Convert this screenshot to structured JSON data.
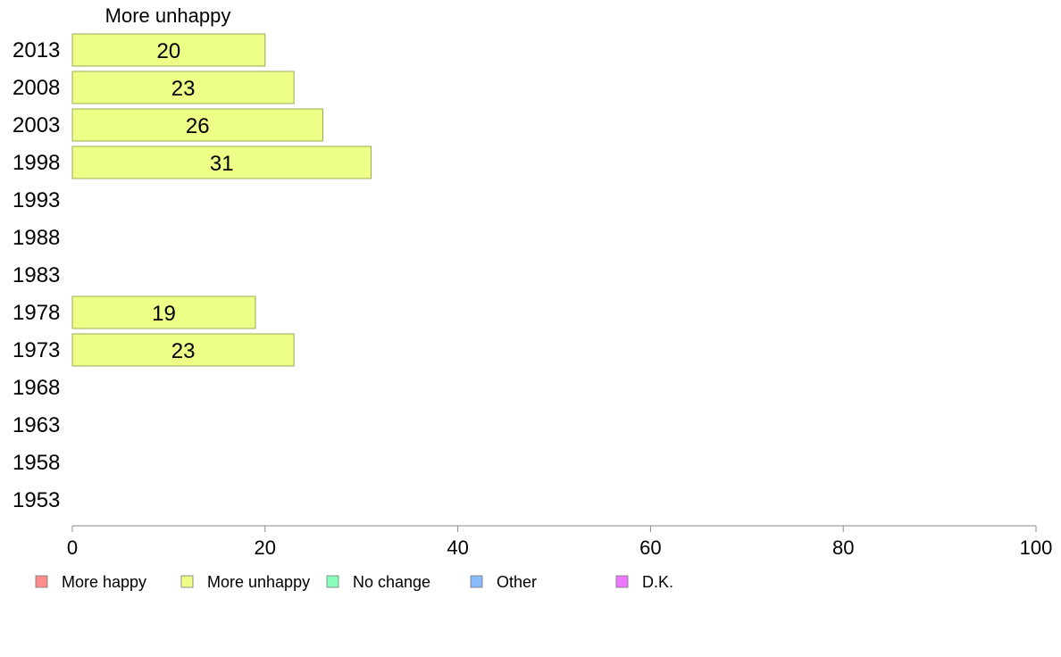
{
  "chart_data": {
    "type": "bar",
    "orientation": "horizontal",
    "title": "More unhappy",
    "categories": [
      "2013",
      "2008",
      "2003",
      "1998",
      "1993",
      "1988",
      "1983",
      "1978",
      "1973",
      "1968",
      "1963",
      "1958",
      "1953"
    ],
    "series": [
      {
        "name": "More unhappy",
        "color": "#eeff88",
        "values": [
          20,
          23,
          26,
          31,
          null,
          null,
          null,
          19,
          23,
          null,
          null,
          null,
          null
        ]
      }
    ],
    "xlim": [
      0,
      100
    ],
    "xticks": [
      0,
      20,
      40,
      60,
      80,
      100
    ],
    "grid": false,
    "legend_position": "bottom",
    "legend": [
      {
        "label": "More happy",
        "color": "#ff8c8c"
      },
      {
        "label": "More unhappy",
        "color": "#eeff88"
      },
      {
        "label": "No change",
        "color": "#88ffbb"
      },
      {
        "label": "Other",
        "color": "#88bbff"
      },
      {
        "label": "D.K.",
        "color": "#ee77ff"
      }
    ],
    "colors": {
      "bar_fill": "#eeff88",
      "bar_stroke": "#99aa55",
      "axis": "#888888"
    }
  }
}
